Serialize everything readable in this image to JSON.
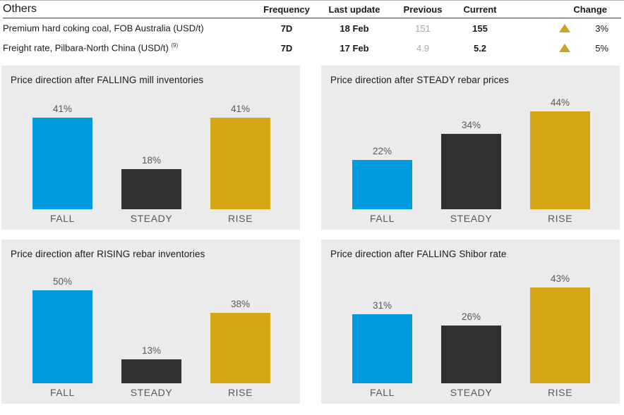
{
  "table": {
    "title": "Others",
    "headers": [
      "Frequency",
      "Last update",
      "Previous",
      "Current",
      "Change"
    ],
    "rows": [
      {
        "name": "Premium hard coking coal, FOB Australia (USD/t)",
        "footnote": "",
        "frequency": "7D",
        "last_update": "18 Feb",
        "previous": "151",
        "current": "155",
        "change": "3%",
        "change_direction": "up"
      },
      {
        "name": "Freight rate, Pilbara-North China (USD/t)",
        "footnote": "(9)",
        "frequency": "7D",
        "last_update": "17 Feb",
        "previous": "4.9",
        "current": "5.2",
        "change": "5%",
        "change_direction": "up"
      }
    ]
  },
  "colors": {
    "blue": "#009ADE",
    "dark": "#313131",
    "gold": "#D5A716",
    "triangle-gold": "#C9A227",
    "panel-bg": "#EBEBEB",
    "label-gray": "#595959",
    "previous-gray": "#A8A8A8",
    "rule-dark": "#595959"
  },
  "chart_data": [
    {
      "type": "bar",
      "title": "Price direction after FALLING mill inventories",
      "categories": [
        "FALL",
        "STEADY",
        "RISE"
      ],
      "values": [
        41,
        18,
        41
      ],
      "value_labels": [
        "41%",
        "18%",
        "41%"
      ],
      "ylim": [
        0,
        50
      ],
      "bar_colors": [
        "#009ADE",
        "#313131",
        "#D5A716"
      ],
      "grid": false,
      "legend": false
    },
    {
      "type": "bar",
      "title": "Price direction after STEADY rebar prices",
      "categories": [
        "FALL",
        "STEADY",
        "RISE"
      ],
      "values": [
        22,
        34,
        44
      ],
      "value_labels": [
        "22%",
        "34%",
        "44%"
      ],
      "ylim": [
        0,
        50
      ],
      "bar_colors": [
        "#009ADE",
        "#313131",
        "#D5A716"
      ],
      "grid": false,
      "legend": false
    },
    {
      "type": "bar",
      "title": "Price direction after RISING rebar inventories",
      "categories": [
        "FALL",
        "STEADY",
        "RISE"
      ],
      "values": [
        50,
        13,
        38
      ],
      "value_labels": [
        "50%",
        "13%",
        "38%"
      ],
      "ylim": [
        0,
        60
      ],
      "bar_colors": [
        "#009ADE",
        "#313131",
        "#D5A716"
      ],
      "grid": false,
      "legend": false
    },
    {
      "type": "bar",
      "title": "Price direction after FALLING Shibor rate",
      "categories": [
        "FALL",
        "STEADY",
        "RISE"
      ],
      "values": [
        31,
        26,
        43
      ],
      "value_labels": [
        "31%",
        "26%",
        "43%"
      ],
      "ylim": [
        0,
        50
      ],
      "bar_colors": [
        "#009ADE",
        "#313131",
        "#D5A716"
      ],
      "grid": false,
      "legend": false
    }
  ]
}
